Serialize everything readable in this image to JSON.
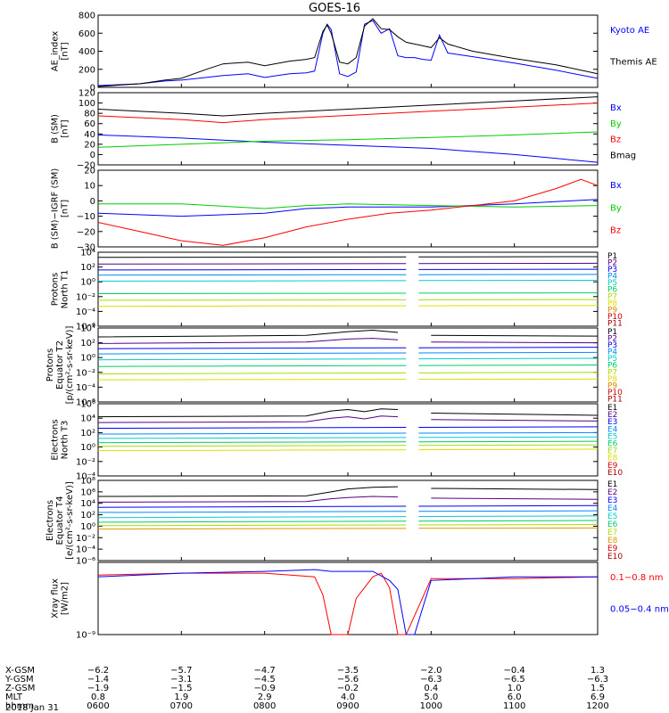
{
  "title": "GOES-16",
  "date_label": "2018 Jan 31",
  "colors": {
    "kyoto": "#0000ff",
    "themis": "#000000",
    "bx": "#0000ff",
    "by": "#00cc00",
    "bz": "#ff0000",
    "bmag": "#000000",
    "xrs_long": "#ff0000",
    "xrs_short": "#0000ff"
  },
  "chart_data": [
    {
      "type": "line",
      "ylabel": [
        "AE_index",
        "[nT]"
      ],
      "ylim": [
        0,
        800
      ],
      "yticks": [
        "0",
        "200",
        "400",
        "600",
        "800"
      ],
      "series": [
        {
          "name": "Kyoto AE",
          "color": "#0000ff",
          "x": [
            6.0,
            6.5,
            6.8,
            7.0,
            7.3,
            7.5,
            7.8,
            8.0,
            8.3,
            8.5,
            8.6,
            8.7,
            8.75,
            8.8,
            8.9,
            9.0,
            9.1,
            9.2,
            9.3,
            9.4,
            9.5,
            9.6,
            9.7,
            9.8,
            9.9,
            10.0,
            10.1,
            10.2,
            10.5,
            11.0,
            11.5,
            12.0
          ],
          "y": [
            20,
            40,
            70,
            80,
            110,
            130,
            150,
            110,
            150,
            160,
            180,
            600,
            700,
            640,
            150,
            120,
            170,
            700,
            740,
            600,
            650,
            350,
            330,
            330,
            310,
            300,
            580,
            380,
            340,
            270,
            190,
            100
          ]
        },
        {
          "name": "Themis AE",
          "color": "#000000",
          "x": [
            6.0,
            6.5,
            6.8,
            7.0,
            7.3,
            7.5,
            7.8,
            8.0,
            8.3,
            8.5,
            8.6,
            8.7,
            8.75,
            8.8,
            8.9,
            9.0,
            9.1,
            9.2,
            9.3,
            9.4,
            9.5,
            9.6,
            9.7,
            9.8,
            9.9,
            10.0,
            10.1,
            10.2,
            10.5,
            11.0,
            11.5,
            12.0
          ],
          "y": [
            10,
            40,
            80,
            100,
            200,
            260,
            280,
            240,
            290,
            310,
            330,
            620,
            690,
            600,
            280,
            260,
            330,
            680,
            760,
            650,
            640,
            560,
            500,
            480,
            460,
            440,
            550,
            480,
            400,
            320,
            250,
            150
          ]
        }
      ],
      "legend": [
        "Kyoto AE",
        "Themis AE"
      ]
    },
    {
      "type": "line",
      "ylabel": [
        "B (SM)",
        "[nT]"
      ],
      "ylim": [
        -20,
        120
      ],
      "yticks": [
        "−20",
        "0",
        "20",
        "40",
        "60",
        "80",
        "100",
        "120"
      ],
      "series": [
        {
          "name": "Bx",
          "color": "#0000ff",
          "x": [
            6.0,
            7.0,
            8.0,
            9.0,
            10.0,
            11.0,
            12.0
          ],
          "y": [
            38,
            32,
            24,
            18,
            12,
            0,
            -15
          ]
        },
        {
          "name": "By",
          "color": "#00cc00",
          "x": [
            6.0,
            7.0,
            8.0,
            9.0,
            10.0,
            11.0,
            12.0
          ],
          "y": [
            14,
            20,
            26,
            29,
            33,
            38,
            44
          ]
        },
        {
          "name": "Bz",
          "color": "#ff0000",
          "x": [
            6.0,
            7.0,
            7.5,
            8.0,
            9.0,
            10.0,
            11.0,
            12.0
          ],
          "y": [
            75,
            68,
            62,
            68,
            76,
            84,
            92,
            100
          ]
        },
        {
          "name": "Bmag",
          "color": "#000000",
          "x": [
            6.0,
            7.0,
            7.5,
            8.0,
            9.0,
            10.0,
            11.0,
            12.0
          ],
          "y": [
            88,
            80,
            75,
            80,
            88,
            96,
            104,
            112
          ]
        }
      ],
      "legend": [
        "Bx",
        "By",
        "Bz",
        "Bmag"
      ]
    },
    {
      "type": "line",
      "ylabel": [
        "B (SM)−IGRF (SM)",
        "[nT]"
      ],
      "ylim": [
        -30,
        20
      ],
      "yticks": [
        "−30",
        "−20",
        "−10",
        "0",
        "10",
        "20"
      ],
      "series": [
        {
          "name": "Bx",
          "color": "#0000ff",
          "x": [
            6.0,
            7.0,
            8.0,
            8.5,
            9.0,
            10.0,
            11.0,
            12.0
          ],
          "y": [
            -8,
            -10,
            -8,
            -5,
            -4,
            -4,
            -2,
            1
          ]
        },
        {
          "name": "By",
          "color": "#00cc00",
          "x": [
            6.0,
            7.0,
            8.0,
            8.5,
            9.0,
            10.0,
            11.0,
            12.0
          ],
          "y": [
            -2,
            -2,
            -5,
            -3,
            -2,
            -3,
            -4,
            -3
          ]
        },
        {
          "name": "Bz",
          "color": "#ff0000",
          "x": [
            6.0,
            6.5,
            7.0,
            7.5,
            8.0,
            8.5,
            9.0,
            9.5,
            10.0,
            10.5,
            11.0,
            11.5,
            11.8,
            12.0
          ],
          "y": [
            -14,
            -20,
            -26,
            -29,
            -24,
            -17,
            -12,
            -8,
            -6,
            -3,
            0,
            8,
            14,
            10
          ]
        }
      ],
      "legend": [
        "Bx",
        "By",
        "Bz"
      ]
    },
    {
      "type": "line",
      "yscale": "log",
      "ylabel": [
        "Protons",
        "North T1"
      ],
      "ylim": [
        -6,
        4
      ],
      "yticks": [
        "10⁻⁶",
        "10⁻⁴",
        "10⁻²",
        "10⁰",
        "10²",
        "10⁴"
      ],
      "gap": [
        9.7,
        9.85
      ],
      "series": [
        {
          "name": "P1",
          "color": "#000000",
          "x": [
            6.0,
            12.0
          ],
          "y": [
            3.3,
            3.4
          ]
        },
        {
          "name": "P2",
          "color": "#550088",
          "x": [
            6.0,
            12.0
          ],
          "y": [
            2.4,
            2.5
          ]
        },
        {
          "name": "P3",
          "color": "#0000ff",
          "x": [
            6.0,
            12.0
          ],
          "y": [
            1.6,
            1.7
          ]
        },
        {
          "name": "P4",
          "color": "#0088ff",
          "x": [
            6.0,
            12.0
          ],
          "y": [
            0.9,
            1.0
          ]
        },
        {
          "name": "P5",
          "color": "#00cccc",
          "x": [
            6.0,
            12.0
          ],
          "y": [
            0.1,
            0.2
          ]
        },
        {
          "name": "P6",
          "color": "#00cc66",
          "x": [
            6.0,
            12.0
          ],
          "y": [
            -1.6,
            -1.5
          ]
        },
        {
          "name": "P7",
          "color": "#aadd00",
          "x": [
            6.0,
            12.0
          ],
          "y": [
            -2.5,
            -2.4
          ]
        },
        {
          "name": "P8",
          "color": "#dddd00",
          "x": [
            6.0,
            12.0
          ],
          "y": [
            -3.3,
            -3.2
          ]
        }
      ],
      "legend": [
        "P1",
        "P2",
        "P3",
        "P4",
        "P5",
        "P6",
        "P7",
        "P8",
        "P9",
        "P10",
        "P11"
      ]
    },
    {
      "type": "line",
      "yscale": "log",
      "ylabel": [
        "Protons",
        "Equator T2",
        "[p/(cm²-s-sr-keV)]"
      ],
      "ylim": [
        -6,
        4
      ],
      "yticks": [
        "10⁻⁶",
        "10⁻⁴",
        "10⁻²",
        "10⁰",
        "10²",
        "10⁴"
      ],
      "gap": [
        9.7,
        9.85
      ],
      "series": [
        {
          "name": "P1",
          "color": "#000000",
          "x": [
            6.0,
            8.5,
            9.0,
            9.3,
            9.6,
            10.0,
            12.0
          ],
          "y": [
            2.8,
            3.0,
            3.5,
            3.7,
            3.4,
            3.0,
            2.9
          ]
        },
        {
          "name": "P2",
          "color": "#550088",
          "x": [
            6.0,
            8.5,
            9.0,
            9.3,
            9.6,
            10.0,
            12.0
          ],
          "y": [
            1.9,
            2.1,
            2.5,
            2.6,
            2.4,
            2.1,
            2.0
          ]
        },
        {
          "name": "P3",
          "color": "#0000ff",
          "x": [
            6.0,
            12.0
          ],
          "y": [
            1.2,
            1.4
          ]
        },
        {
          "name": "P4",
          "color": "#0088ff",
          "x": [
            6.0,
            12.0
          ],
          "y": [
            0.5,
            0.7
          ]
        },
        {
          "name": "P5",
          "color": "#00cccc",
          "x": [
            6.0,
            12.0
          ],
          "y": [
            -0.3,
            -0.1
          ]
        },
        {
          "name": "P6",
          "color": "#00cc66",
          "x": [
            6.0,
            12.0
          ],
          "y": [
            -1.2,
            -1.0
          ]
        },
        {
          "name": "P7",
          "color": "#aadd00",
          "x": [
            6.0,
            12.0
          ],
          "y": [
            -2.2,
            -2.0
          ]
        },
        {
          "name": "P8",
          "color": "#dddd00",
          "x": [
            6.0,
            12.0
          ],
          "y": [
            -3.0,
            -2.9
          ]
        }
      ],
      "legend": [
        "P1",
        "P2",
        "P3",
        "P4",
        "P5",
        "P6",
        "P7",
        "P8",
        "P9",
        "P10",
        "P11"
      ]
    },
    {
      "type": "line",
      "yscale": "log",
      "ylabel": [
        "Electrons",
        "North T3"
      ],
      "ylim": [
        -4,
        6
      ],
      "yticks": [
        "10⁻⁴",
        "10⁻²",
        "10⁰",
        "10²",
        "10⁴",
        "10⁶"
      ],
      "gap": [
        9.7,
        9.85
      ],
      "series": [
        {
          "name": "E1",
          "color": "#000000",
          "x": [
            6.0,
            8.5,
            8.8,
            9.0,
            9.2,
            9.4,
            9.6,
            10.0,
            12.0
          ],
          "y": [
            4.2,
            4.3,
            5.0,
            5.2,
            4.9,
            5.3,
            5.2,
            4.7,
            4.4
          ]
        },
        {
          "name": "E2",
          "color": "#550088",
          "x": [
            6.0,
            8.5,
            8.8,
            9.0,
            9.2,
            9.4,
            9.6,
            10.0,
            12.0
          ],
          "y": [
            3.4,
            3.5,
            4.0,
            4.2,
            3.9,
            4.3,
            4.2,
            3.8,
            3.6
          ]
        },
        {
          "name": "E3",
          "color": "#0000ff",
          "x": [
            6.0,
            12.0
          ],
          "y": [
            2.6,
            2.8
          ]
        },
        {
          "name": "E4",
          "color": "#0088ff",
          "x": [
            6.0,
            12.0
          ],
          "y": [
            1.8,
            2.0
          ]
        },
        {
          "name": "E5",
          "color": "#00cccc",
          "x": [
            6.0,
            12.0
          ],
          "y": [
            1.2,
            1.4
          ]
        },
        {
          "name": "E6",
          "color": "#00cc66",
          "x": [
            6.0,
            12.0
          ],
          "y": [
            0.6,
            0.8
          ]
        },
        {
          "name": "E7",
          "color": "#aadd00",
          "x": [
            6.0,
            12.0
          ],
          "y": [
            0.1,
            0.3
          ]
        },
        {
          "name": "E8",
          "color": "#dddd00",
          "x": [
            6.0,
            12.0
          ],
          "y": [
            -0.5,
            -0.3
          ]
        }
      ],
      "legend": [
        "E1",
        "E2",
        "E3",
        "E4",
        "E5",
        "E6",
        "E7",
        "E8",
        "E9",
        "E10"
      ]
    },
    {
      "type": "line",
      "yscale": "log",
      "ylabel": [
        "Electrons",
        "Equator T4",
        "[e/(cm²-s-sr-keV)]"
      ],
      "ylim": [
        -6,
        8
      ],
      "yticks": [
        "10⁻⁶",
        "10⁻⁴",
        "10⁻²",
        "10⁰",
        "10²",
        "10⁴",
        "10⁶",
        "10⁸"
      ],
      "gap": [
        9.7,
        9.85
      ],
      "series": [
        {
          "name": "E1",
          "color": "#000000",
          "x": [
            6.0,
            8.5,
            8.8,
            9.0,
            9.3,
            9.6,
            10.0,
            12.0
          ],
          "y": [
            5.2,
            5.3,
            6.0,
            6.5,
            6.8,
            6.9,
            6.6,
            6.4
          ]
        },
        {
          "name": "E2",
          "color": "#550088",
          "x": [
            6.0,
            8.5,
            8.8,
            9.0,
            9.3,
            9.6,
            10.0,
            12.0
          ],
          "y": [
            4.2,
            4.3,
            4.8,
            5.0,
            5.2,
            5.1,
            4.9,
            4.7
          ]
        },
        {
          "name": "E3",
          "color": "#0000ff",
          "x": [
            6.0,
            12.0
          ],
          "y": [
            3.3,
            3.6
          ]
        },
        {
          "name": "E4",
          "color": "#0088ff",
          "x": [
            6.0,
            12.0
          ],
          "y": [
            2.4,
            2.7
          ]
        },
        {
          "name": "E5",
          "color": "#00cccc",
          "x": [
            6.0,
            12.0
          ],
          "y": [
            1.5,
            1.8
          ]
        },
        {
          "name": "E6",
          "color": "#00cc66",
          "x": [
            6.0,
            12.0
          ],
          "y": [
            0.7,
            1.0
          ]
        },
        {
          "name": "E7",
          "color": "#aadd00",
          "x": [
            6.0,
            12.0
          ],
          "y": [
            0.1,
            0.3
          ]
        },
        {
          "name": "E8",
          "color": "#dd9900",
          "x": [
            6.0,
            12.0
          ],
          "y": [
            -0.5,
            -0.3
          ]
        }
      ],
      "legend": [
        "E1",
        "E2",
        "E3",
        "E4",
        "E5",
        "E6",
        "E7",
        "E8",
        "E9",
        "E10"
      ]
    },
    {
      "type": "line",
      "yscale": "log",
      "ylabel": [
        "Xray flux",
        "[W/m2]"
      ],
      "ylim": [
        -9,
        -5
      ],
      "yticks": [
        "10⁻⁹"
      ],
      "series": [
        {
          "name": "0.1−0.8 nm",
          "color": "#ff0000",
          "x": [
            6.0,
            7.0,
            8.0,
            8.6,
            8.7,
            8.8,
            9.0,
            9.1,
            9.3,
            9.4,
            9.5,
            9.6,
            9.7,
            10.0,
            11.0,
            12.0
          ],
          "y": [
            -5.7,
            -5.6,
            -5.6,
            -5.8,
            -6.8,
            -9.0,
            -9.0,
            -7.0,
            -5.8,
            -5.6,
            -6.4,
            -9.0,
            -9.0,
            -5.9,
            -5.9,
            -5.8
          ]
        },
        {
          "name": "0.05−0.4 nm",
          "color": "#0000ff",
          "x": [
            6.0,
            7.0,
            8.0,
            8.6,
            8.8,
            9.0,
            9.3,
            9.5,
            9.6,
            9.7,
            9.8,
            10.0,
            11.0,
            12.0
          ],
          "y": [
            -5.8,
            -5.6,
            -5.5,
            -5.4,
            -5.5,
            -5.5,
            -5.5,
            -6.0,
            -6.5,
            -9.0,
            -9.0,
            -6.0,
            -5.8,
            -5.8
          ]
        }
      ],
      "legend": [
        "0.1−0.8 nm",
        "0.05−0.4 nm"
      ]
    }
  ],
  "xaxis": {
    "row_labels": [
      "X-GSM",
      "Y-GSM",
      "Z-GSM",
      "MLT",
      "hhmm"
    ],
    "ticks": [
      {
        "time": 6.0,
        "values": [
          "−6.2",
          "−1.4",
          "−1.9",
          "0.8",
          "0600"
        ]
      },
      {
        "time": 7.0,
        "values": [
          "−5.7",
          "−3.1",
          "−1.5",
          "1.9",
          "0700"
        ]
      },
      {
        "time": 8.0,
        "values": [
          "−4.7",
          "−4.5",
          "−0.9",
          "2.9",
          "0800"
        ]
      },
      {
        "time": 9.0,
        "values": [
          "−3.5",
          "−5.6",
          "−0.2",
          "4.0",
          "0900"
        ]
      },
      {
        "time": 10.0,
        "values": [
          "−2.0",
          "−6.3",
          "0.4",
          "5.0",
          "1000"
        ]
      },
      {
        "time": 11.0,
        "values": [
          "−0.4",
          "−6.5",
          "1.0",
          "6.0",
          "1100"
        ]
      },
      {
        "time": 12.0,
        "values": [
          "1.3",
          "−6.3",
          "1.5",
          "6.9",
          "1200"
        ]
      }
    ]
  }
}
